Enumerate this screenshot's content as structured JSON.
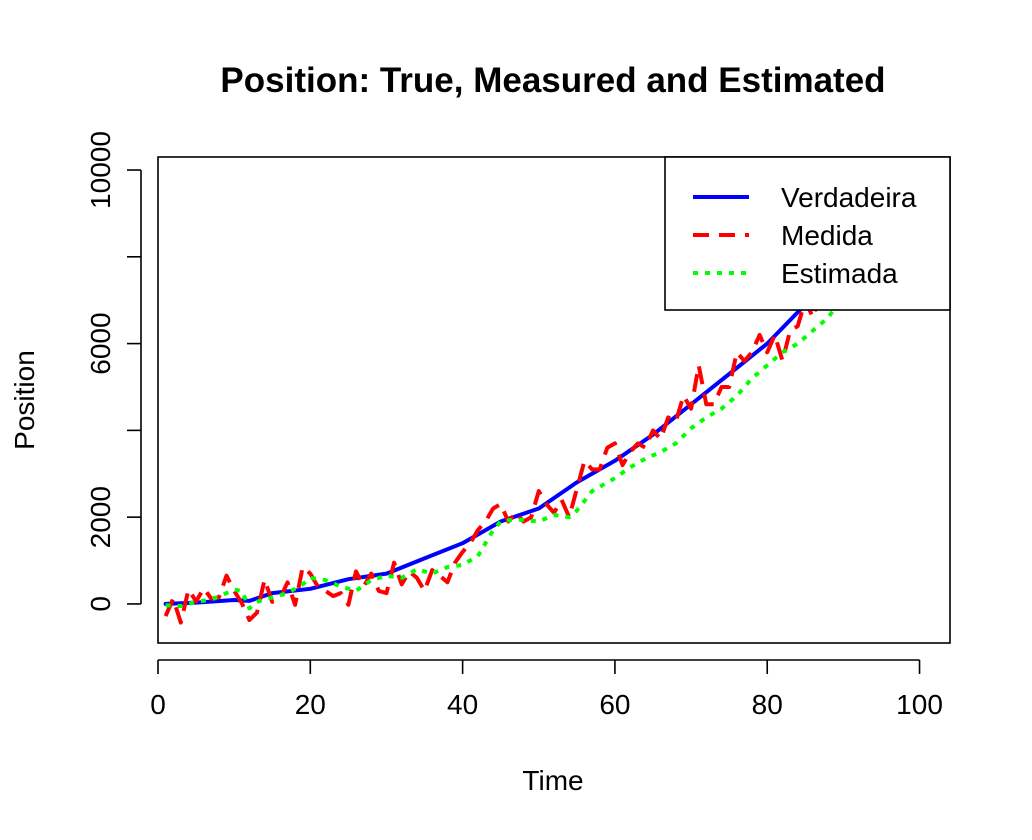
{
  "chart_data": {
    "type": "line",
    "title": "Position: True, Measured and Estimated",
    "xlabel": "Time",
    "ylabel": "Position",
    "xlim": [
      0,
      104
    ],
    "ylim": [
      -900,
      10300
    ],
    "x_ticks": [
      0,
      20,
      40,
      60,
      80,
      100
    ],
    "y_ticks": [
      0,
      2000,
      4000,
      6000,
      8000,
      10000
    ],
    "y_tick_labels": [
      "0",
      "2000",
      "",
      "6000",
      "",
      "10000"
    ],
    "grid": false,
    "legend_position": "top-right",
    "series": [
      {
        "name": "Verdadeira",
        "color": "#0000ff",
        "style": "solid",
        "x": [
          1,
          5,
          10,
          12,
          15,
          20,
          25,
          30,
          35,
          40,
          45,
          50,
          55,
          60,
          65,
          70,
          75,
          80,
          85,
          90,
          95,
          100
        ],
        "y": [
          0,
          30,
          90,
          70,
          250,
          350,
          570,
          700,
          1050,
          1400,
          1900,
          2200,
          2800,
          3300,
          3900,
          4600,
          5300,
          6000,
          6900,
          7800,
          8700,
          9600
        ]
      },
      {
        "name": "Medida",
        "color": "#ff0000",
        "style": "dashed",
        "x": [
          1,
          2,
          3,
          4,
          5,
          6,
          7,
          8,
          9,
          10,
          11,
          12,
          13,
          14,
          15,
          16,
          17,
          18,
          19,
          20,
          21,
          22,
          23,
          24,
          25,
          26,
          27,
          28,
          29,
          30,
          31,
          32,
          33,
          34,
          35,
          36,
          37,
          38,
          39,
          40,
          41,
          42,
          43,
          44,
          45,
          46,
          47,
          48,
          49,
          50,
          51,
          52,
          53,
          54,
          55,
          56,
          57,
          58,
          59,
          60,
          61,
          62,
          63,
          64,
          65,
          66,
          67,
          68,
          69,
          70,
          71,
          72,
          73,
          74,
          75,
          76,
          77,
          78,
          79,
          80,
          81,
          82,
          83,
          84,
          85,
          86,
          87,
          88,
          89,
          90
        ],
        "y": [
          -280,
          120,
          -430,
          330,
          60,
          360,
          120,
          150,
          650,
          300,
          20,
          -370,
          -200,
          560,
          50,
          110,
          500,
          -20,
          850,
          700,
          400,
          300,
          180,
          250,
          -20,
          750,
          400,
          700,
          300,
          250,
          950,
          450,
          750,
          600,
          300,
          780,
          650,
          500,
          950,
          1200,
          1400,
          1700,
          1900,
          2200,
          2300,
          1900,
          2100,
          1900,
          2000,
          2600,
          2300,
          2100,
          2400,
          2000,
          2650,
          3300,
          3100,
          3100,
          3600,
          3700,
          3200,
          3500,
          3700,
          3600,
          4000,
          3800,
          4300,
          4200,
          4800,
          4500,
          5500,
          4600,
          4600,
          5000,
          5000,
          5800,
          5600,
          5800,
          6200,
          5800,
          6200,
          5600,
          6300,
          6400,
          7000,
          6600,
          7200,
          7500,
          7700,
          8000
        ]
      },
      {
        "name": "Estimada",
        "color": "#00ff00",
        "style": "dotted",
        "x": [
          1,
          3,
          5,
          7,
          9,
          10,
          11,
          12,
          13,
          15,
          17,
          19,
          20,
          22,
          24,
          26,
          28,
          30,
          32,
          34,
          36,
          38,
          40,
          42,
          44,
          45,
          47,
          50,
          52,
          54,
          55,
          57,
          60,
          62,
          64,
          66,
          68,
          70,
          72,
          74,
          76,
          78,
          80,
          82,
          84,
          86,
          88,
          90
        ],
        "y": [
          -30,
          -50,
          50,
          100,
          250,
          330,
          300,
          -100,
          50,
          150,
          250,
          450,
          600,
          550,
          400,
          300,
          550,
          650,
          600,
          800,
          700,
          850,
          900,
          1100,
          1700,
          1900,
          1950,
          1900,
          2050,
          2000,
          2150,
          2600,
          2900,
          3150,
          3350,
          3500,
          3700,
          4050,
          4300,
          4500,
          4800,
          5200,
          5500,
          5800,
          6000,
          6300,
          6600,
          7100
        ]
      }
    ]
  }
}
